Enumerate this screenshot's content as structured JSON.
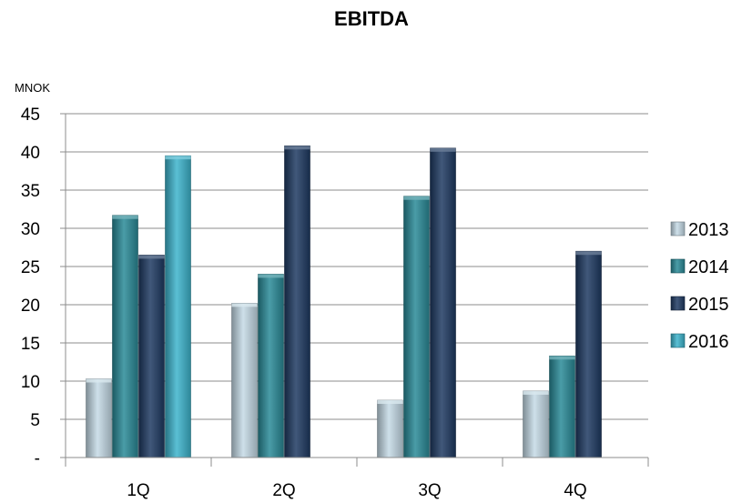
{
  "chart_data": {
    "type": "bar",
    "title": "EBITDA",
    "ylabel": "MNOK",
    "xlabel": "",
    "categories": [
      "1Q",
      "2Q",
      "3Q",
      "4Q"
    ],
    "ylim": [
      0,
      45
    ],
    "yticks": [
      0,
      5,
      10,
      15,
      20,
      25,
      30,
      35,
      40,
      45
    ],
    "ytick_labels": [
      "-",
      "5",
      "10",
      "15",
      "20",
      "25",
      "30",
      "35",
      "40",
      "45"
    ],
    "grid": true,
    "legend": "right",
    "series": [
      {
        "name": "2013",
        "color": "#c5dbe6",
        "values": [
          10.3,
          20.2,
          7.5,
          8.7
        ]
      },
      {
        "name": "2014",
        "color": "#2a8b98",
        "values": [
          31.7,
          24.0,
          34.2,
          13.3
        ]
      },
      {
        "name": "2015",
        "color": "#1f3a63",
        "values": [
          26.5,
          40.8,
          40.5,
          27.0
        ]
      },
      {
        "name": "2016",
        "color": "#3db4cc",
        "values": [
          39.5,
          null,
          null,
          null
        ]
      }
    ]
  }
}
